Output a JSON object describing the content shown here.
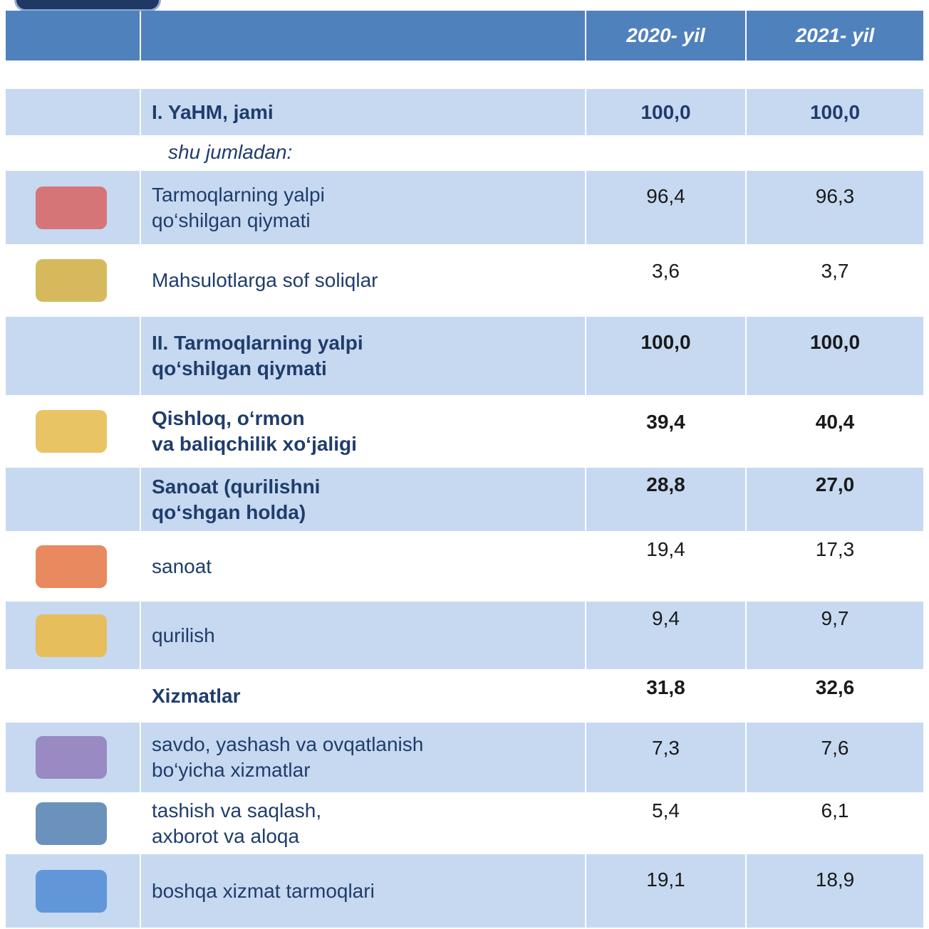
{
  "table": {
    "header": [
      "2020- yil",
      "2021- yil"
    ],
    "rows": [
      [
        "I. YaHM, jami",
        "100,0",
        "100,0"
      ],
      [
        "shu jumladan:"
      ],
      [
        "Tarmoqlarning yalpi\nqo‘shilgan qiymati",
        "96,4",
        "96,3"
      ],
      [
        "Mahsulotlarga sof soliqlar",
        "3,6",
        "3,7"
      ],
      [
        "II. Tarmoqlarning yalpi\nqo‘shilgan qiymati",
        "100,0",
        "100,0"
      ],
      [
        "Qishloq, o‘rmon\nva baliqchilik xo‘jaligi",
        "39,4",
        "40,4"
      ],
      [
        "Sanoat (qurilishni\nqo‘shgan holda)",
        "28,8",
        "27,0"
      ],
      [
        "sanoat",
        "19,4",
        "17,3"
      ],
      [
        "qurilish",
        "9,4",
        "9,7"
      ],
      [
        "Xizmatlar",
        "31,8",
        "32,6"
      ],
      [
        "savdo, yashash va ovqatlanish\nbo‘yicha xizmatlar",
        "7,3",
        "7,6"
      ],
      [
        "tashish va saqlash,\naxborot va aloqa",
        "5,4",
        "6,1"
      ],
      [
        "boshqa xizmat tarmoqlari",
        "19,1",
        "18,9"
      ]
    ]
  }
}
